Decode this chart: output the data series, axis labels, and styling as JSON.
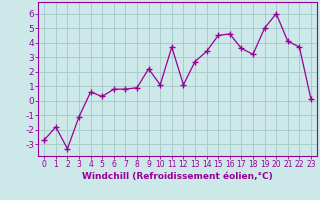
{
  "x": [
    0,
    1,
    2,
    3,
    4,
    5,
    6,
    7,
    8,
    9,
    10,
    11,
    12,
    13,
    14,
    15,
    16,
    17,
    18,
    19,
    20,
    21,
    22,
    23
  ],
  "y": [
    -2.7,
    -1.8,
    -3.3,
    -1.1,
    0.6,
    0.3,
    0.8,
    0.8,
    0.9,
    2.2,
    1.1,
    3.7,
    1.1,
    2.7,
    3.4,
    4.5,
    4.6,
    3.6,
    3.2,
    5.0,
    6.0,
    4.1,
    3.7,
    0.1
  ],
  "line_color": "#990099",
  "marker": "+",
  "marker_size": 4,
  "bg_color": "#cce8e8",
  "grid_color": "#aacccc",
  "xlabel": "Windchill (Refroidissement éolien,°C)",
  "xlim": [
    -0.5,
    23.5
  ],
  "ylim": [
    -3.8,
    6.8
  ],
  "yticks": [
    -3,
    -2,
    -1,
    0,
    1,
    2,
    3,
    4,
    5,
    6
  ],
  "xticks": [
    0,
    1,
    2,
    3,
    4,
    5,
    6,
    7,
    8,
    9,
    10,
    11,
    12,
    13,
    14,
    15,
    16,
    17,
    18,
    19,
    20,
    21,
    22,
    23
  ],
  "axis_color": "#990099",
  "tick_color": "#990099",
  "label_color": "#990099",
  "xlabel_fontsize": 6.5,
  "ytick_fontsize": 6.5,
  "xtick_fontsize": 5.5
}
